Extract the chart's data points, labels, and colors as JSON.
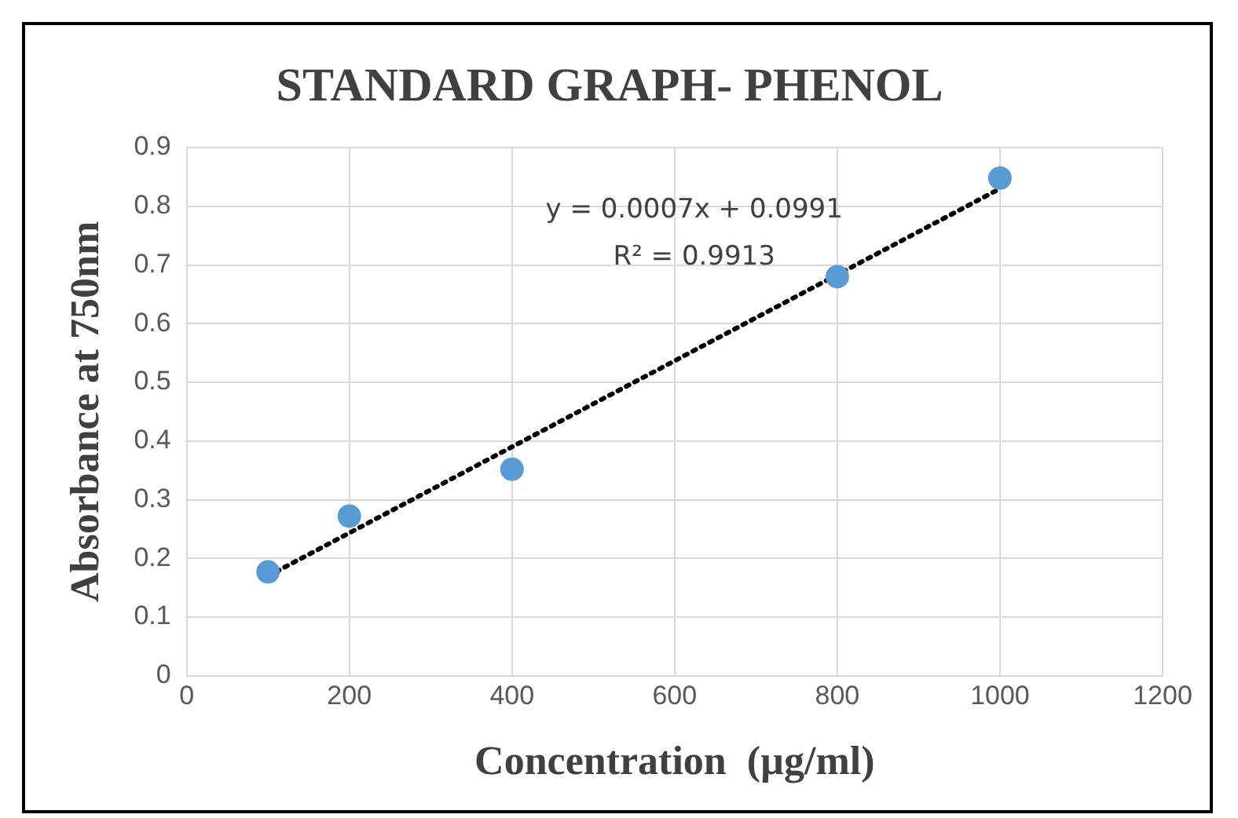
{
  "chart_data": {
    "type": "scatter",
    "title": "STANDARD GRAPH- PHENOL",
    "xlabel": "Concentration  (µg/ml)",
    "ylabel": "Absorbance at 750nm",
    "annotations": [
      "y = 0.0007x + 0.0991",
      "R² = 0.9913"
    ],
    "xlim": [
      0,
      1200
    ],
    "xticks": [
      0,
      200,
      400,
      600,
      800,
      1000,
      1200
    ],
    "ylim": [
      0,
      0.9
    ],
    "yticks": [
      0,
      0.1,
      0.2,
      0.3,
      0.4,
      0.5,
      0.6,
      0.7,
      0.8,
      0.9
    ],
    "grid": true,
    "legend": false,
    "marker": "circle",
    "series": [
      {
        "color": "#5b9bd5",
        "x": [
          100,
          200,
          400,
          800,
          1000
        ],
        "values": [
          0.177,
          0.272,
          0.352,
          0.68,
          0.848
        ]
      },
      {
        "type": "line",
        "color": "#000000",
        "line_style": "dotted",
        "marker": "none",
        "x": [
          100,
          1000
        ],
        "values": [
          0.17,
          0.83
        ]
      }
    ]
  }
}
